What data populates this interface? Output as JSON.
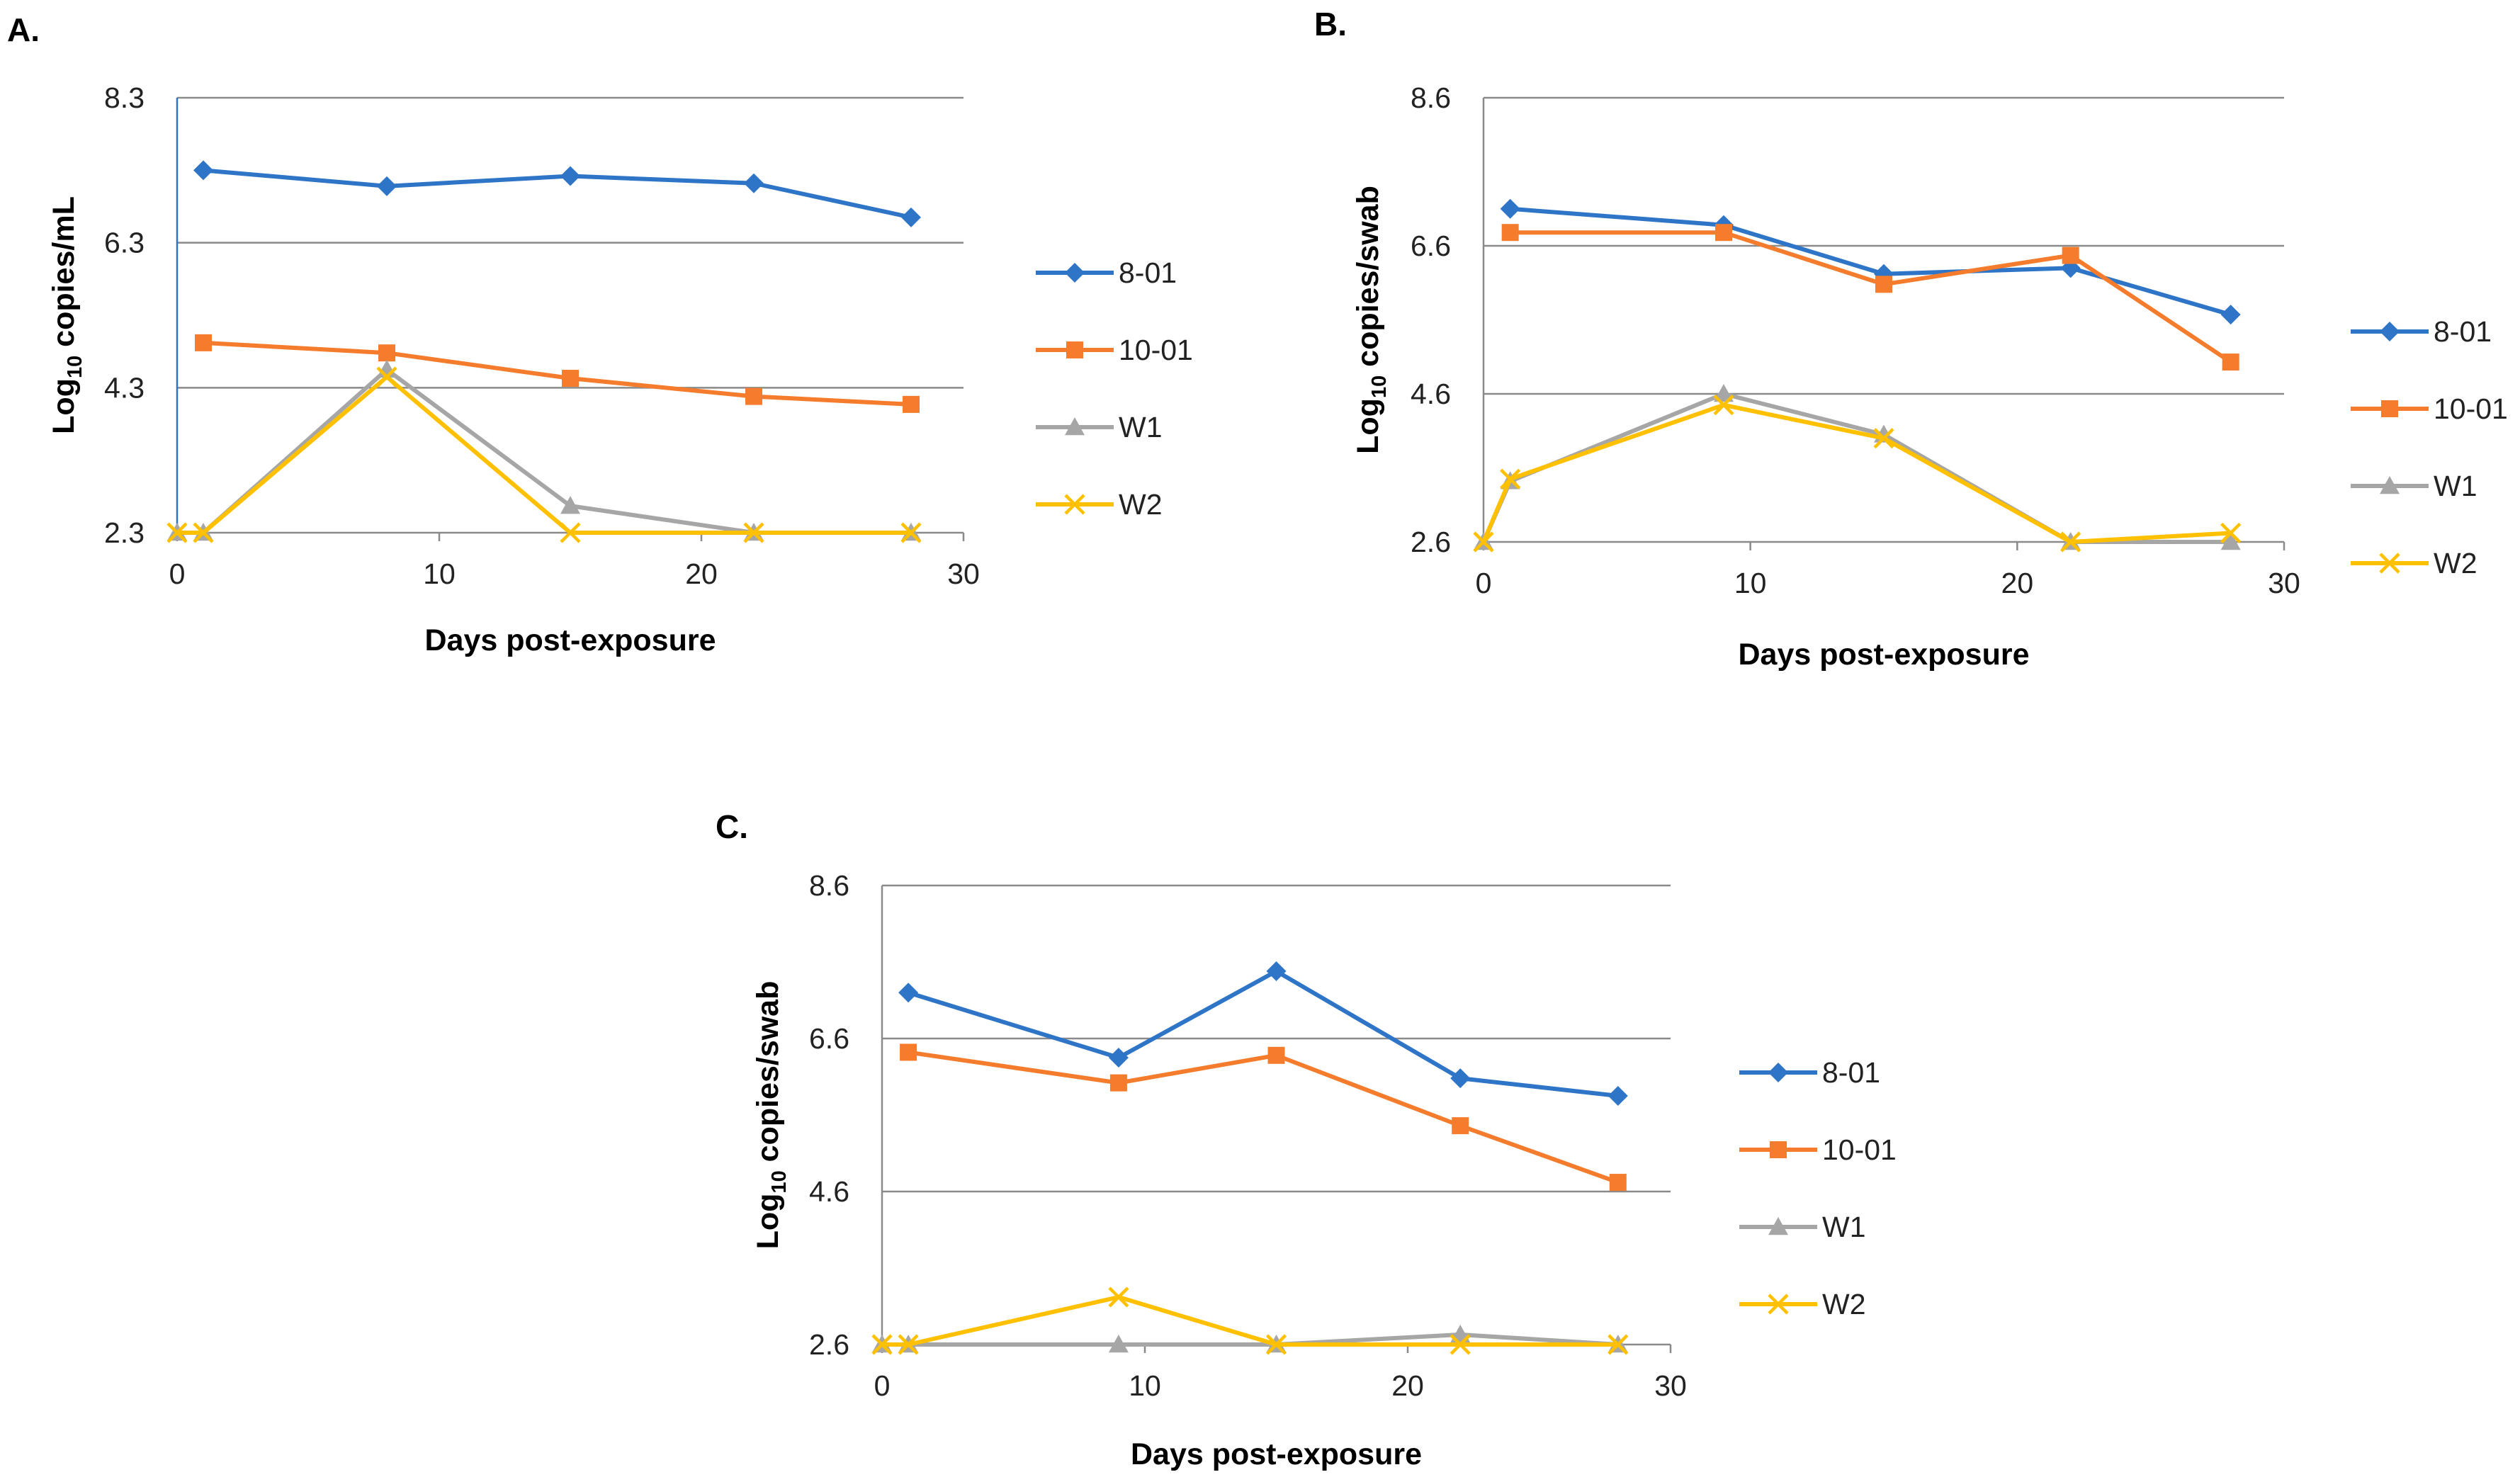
{
  "chart_data": [
    {
      "type": "line",
      "panel_label": "A.",
      "xlabel": "Days post-exposure",
      "ylabel": "Log10 copies/mL",
      "ylabel_parts": [
        "Log",
        "10",
        " copies/mL"
      ],
      "xlim": [
        0,
        30
      ],
      "ylim": [
        2.3,
        8.3
      ],
      "xticks": [
        "0",
        "10",
        "20",
        "30"
      ],
      "yticks": [
        "8.3",
        "6.3",
        "4.3",
        "2.3"
      ],
      "grid": true,
      "legend": "right",
      "series": [
        {
          "name": "8-01",
          "color": "#2e75c7",
          "marker": "diamond",
          "x": [
            1,
            8,
            15,
            22,
            28
          ],
          "values": [
            7.3,
            7.08,
            7.22,
            7.12,
            6.65
          ]
        },
        {
          "name": "10-01",
          "color": "#f47c2c",
          "marker": "square",
          "x": [
            1,
            8,
            15,
            22,
            28
          ],
          "values": [
            4.92,
            4.78,
            4.43,
            4.18,
            4.07
          ]
        },
        {
          "name": "W1",
          "color": "#a6a6a6",
          "marker": "triangle",
          "x": [
            0,
            1,
            8,
            15,
            22,
            28
          ],
          "values": [
            2.3,
            2.3,
            4.55,
            2.67,
            2.3,
            2.3
          ]
        },
        {
          "name": "W2",
          "color": "#ffc000",
          "marker": "x",
          "x": [
            0,
            1,
            8,
            15,
            22,
            28
          ],
          "values": [
            2.3,
            2.3,
            4.45,
            2.3,
            2.3,
            2.3
          ]
        }
      ]
    },
    {
      "type": "line",
      "panel_label": "B.",
      "xlabel": "Days post-exposure",
      "ylabel": "Log10 copies/swab",
      "ylabel_parts": [
        "Log",
        "10",
        " copies/swab"
      ],
      "xlim": [
        0,
        30
      ],
      "ylim": [
        2.6,
        8.6
      ],
      "xticks": [
        "0",
        "10",
        "20",
        "30"
      ],
      "yticks": [
        "8.6",
        "6.6",
        "4.6",
        "2.6"
      ],
      "grid": true,
      "legend": "right",
      "series": [
        {
          "name": "8-01",
          "color": "#2e75c7",
          "marker": "diamond",
          "x": [
            1,
            9,
            15,
            22,
            28
          ],
          "values": [
            7.1,
            6.88,
            6.22,
            6.3,
            5.67
          ]
        },
        {
          "name": "10-01",
          "color": "#f47c2c",
          "marker": "square",
          "x": [
            1,
            9,
            15,
            22,
            28
          ],
          "values": [
            6.78,
            6.78,
            6.08,
            6.47,
            5.03
          ]
        },
        {
          "name": "W1",
          "color": "#a6a6a6",
          "marker": "triangle",
          "x": [
            0,
            1,
            9,
            15,
            22,
            28
          ],
          "values": [
            2.6,
            3.42,
            4.6,
            4.05,
            2.6,
            2.6
          ]
        },
        {
          "name": "W2",
          "color": "#ffc000",
          "marker": "x",
          "x": [
            0,
            1,
            9,
            15,
            22,
            28
          ],
          "values": [
            2.6,
            3.45,
            4.45,
            4.0,
            2.6,
            2.72
          ]
        }
      ]
    },
    {
      "type": "line",
      "panel_label": "C.",
      "xlabel": "Days post-exposure",
      "ylabel": "Log10 copies/swab",
      "ylabel_parts": [
        "Log",
        "10",
        " copies/swab"
      ],
      "xlim": [
        0,
        30
      ],
      "ylim": [
        2.6,
        8.6
      ],
      "xticks": [
        "0",
        "10",
        "20",
        "30"
      ],
      "yticks": [
        "8.6",
        "6.6",
        "4.6",
        "2.6"
      ],
      "grid": true,
      "legend": "right",
      "series": [
        {
          "name": "8-01",
          "color": "#2e75c7",
          "marker": "diamond",
          "x": [
            1,
            9,
            15,
            22,
            28
          ],
          "values": [
            7.2,
            6.35,
            7.48,
            6.08,
            5.85
          ]
        },
        {
          "name": "10-01",
          "color": "#f47c2c",
          "marker": "square",
          "x": [
            1,
            9,
            15,
            22,
            28
          ],
          "values": [
            6.42,
            6.02,
            6.38,
            5.46,
            4.72
          ]
        },
        {
          "name": "W1",
          "color": "#a6a6a6",
          "marker": "triangle",
          "x": [
            0,
            1,
            9,
            15,
            22,
            28
          ],
          "values": [
            2.6,
            2.6,
            2.6,
            2.6,
            2.73,
            2.6
          ]
        },
        {
          "name": "W2",
          "color": "#ffc000",
          "marker": "x",
          "x": [
            0,
            1,
            9,
            15,
            22,
            28
          ],
          "values": [
            2.6,
            2.6,
            3.22,
            2.6,
            2.6,
            2.6
          ]
        }
      ]
    }
  ]
}
